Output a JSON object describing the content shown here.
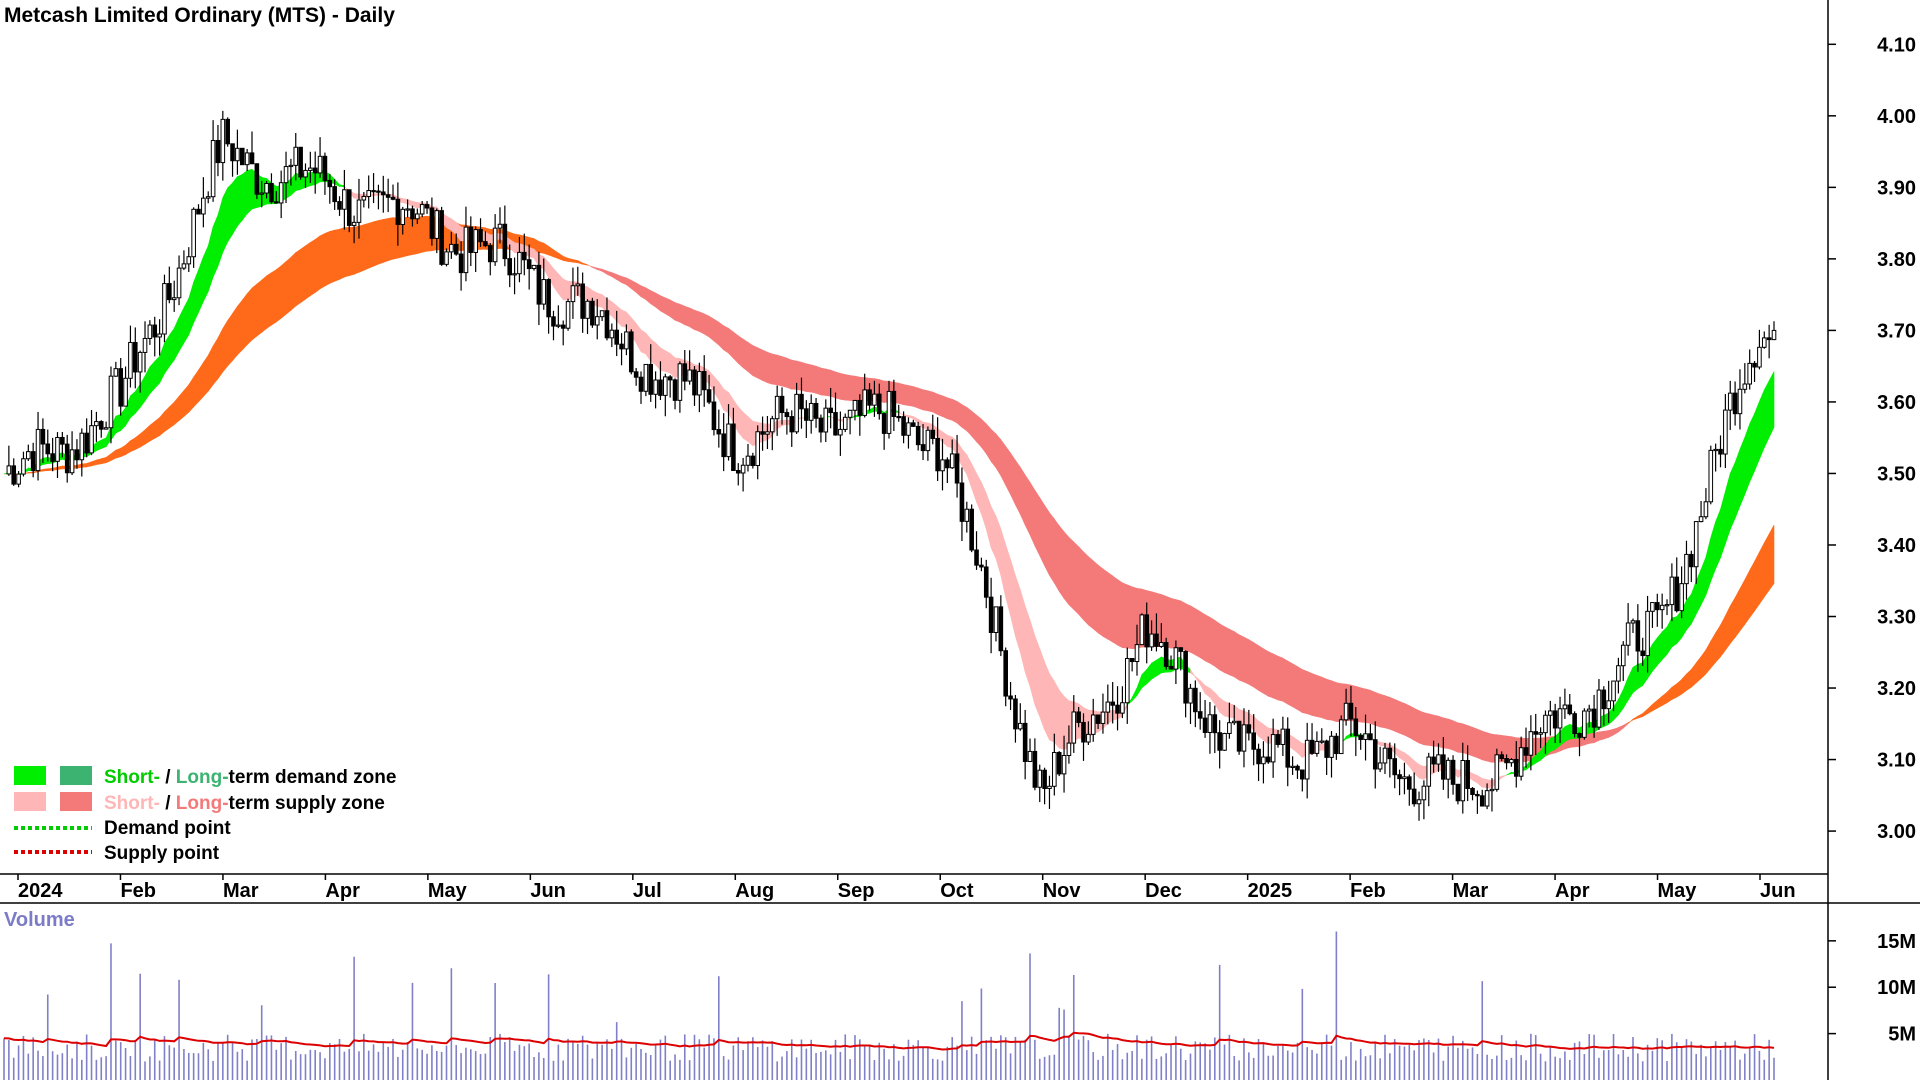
{
  "chart_data": {
    "type": "candlestick",
    "title": "Metcash Limited Ordinary (MTS) - Daily",
    "price_axis": {
      "ticks": [
        "4.10",
        "4.00",
        "3.90",
        "3.80",
        "3.70",
        "3.60",
        "3.50",
        "3.40",
        "3.30",
        "3.20",
        "3.10",
        "3.00"
      ],
      "ylim": [
        2.94,
        4.12
      ]
    },
    "x_ticks": [
      "2024",
      "Feb",
      "Mar",
      "Apr",
      "May",
      "Jun",
      "Jul",
      "Aug",
      "Sep",
      "Oct",
      "Nov",
      "Dec",
      "2025",
      "Feb",
      "Mar",
      "Apr",
      "May",
      "Jun"
    ],
    "approx_close_path": [
      [
        "2024",
        3.5
      ],
      [
        "Feb",
        3.6
      ],
      [
        "Mar",
        3.95
      ],
      [
        "Apr",
        3.9
      ],
      [
        "May",
        3.85
      ],
      [
        "Jun",
        3.78
      ],
      [
        "Jul",
        3.68
      ],
      [
        "Aug",
        3.55
      ],
      [
        "Sep",
        3.58
      ],
      [
        "Oct",
        3.55
      ],
      [
        "Nov",
        3.05
      ],
      [
        "Dec",
        3.28
      ],
      [
        "2025",
        3.1
      ],
      [
        "Feb",
        3.13
      ],
      [
        "Mar",
        3.05
      ],
      [
        "Apr",
        3.15
      ],
      [
        "May",
        3.28
      ],
      [
        "Jun",
        3.7
      ]
    ],
    "last_close": 3.7,
    "legend": [
      {
        "label_short": "Short-",
        "sep": " / ",
        "label_long": "Long-",
        "suffix": "term demand zone",
        "short_color": "#00ee00",
        "long_color": "#3cb371"
      },
      {
        "label_short": "Short-",
        "sep": " / ",
        "label_long": "Long-",
        "suffix": "term supply zone",
        "short_color": "#ffb6b6",
        "long_color": "#f47a7a"
      },
      {
        "label": "Demand point",
        "color": "#00cc00"
      },
      {
        "label": "Supply point",
        "color": "#dd0000"
      }
    ],
    "volume": {
      "label": "Volume",
      "ticks": [
        "15M",
        "10M",
        "5M"
      ],
      "ylim": [
        0,
        18
      ],
      "average_line_color": "#dd0000",
      "bar_color": "#8080c8"
    },
    "colors": {
      "short_demand": "#00ee00",
      "long_demand": "#3cb371",
      "short_supply": "#ffb6b6",
      "long_supply": "#f47a7a",
      "ribbon_orange": "#ff6a1a",
      "candle": "#000000"
    }
  }
}
